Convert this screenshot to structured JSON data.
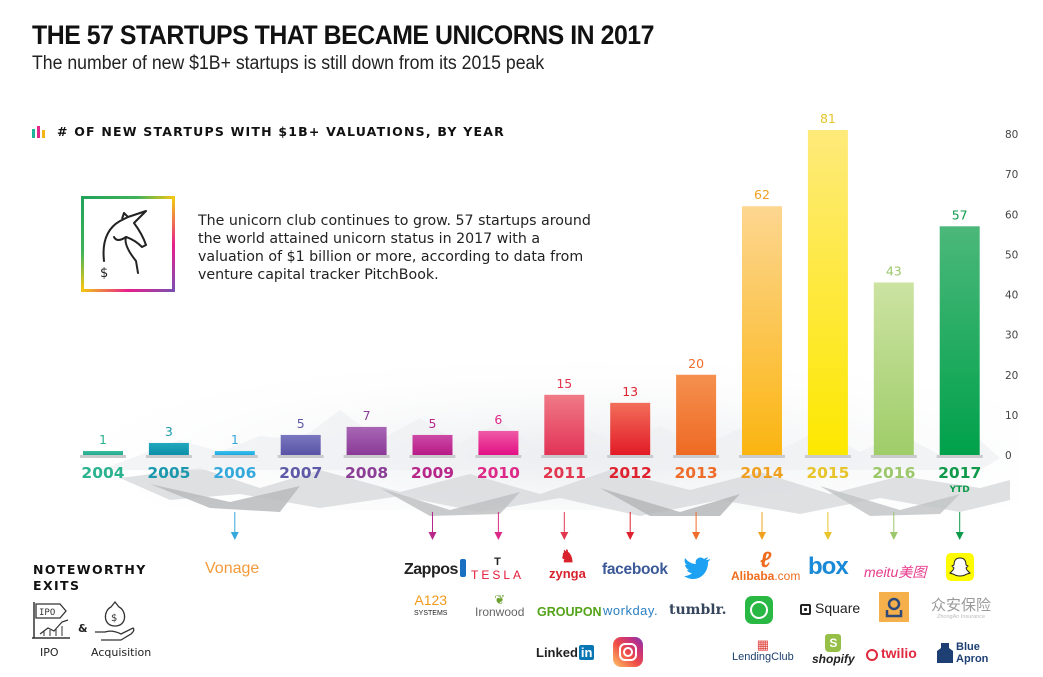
{
  "header": {
    "title": "THE 57 STARTUPS THAT BECAME UNICORNS IN 2017",
    "subtitle": "The number of new $1B+ startups is still down from its 2015 peak"
  },
  "chart_header": {
    "icon": "bar-chart-icon",
    "label": "# OF NEW STARTUPS WITH $1B+ VALUATIONS, BY YEAR"
  },
  "callout": {
    "icon": "unicorn-dollar-icon",
    "text": "The unicorn club continues to grow. 57 startups around the world attained unicorn status in 2017 with a valuation of $1 billion or more, according to data from venture capital tracker PitchBook."
  },
  "chart_data": {
    "type": "bar",
    "title": "# OF NEW STARTUPS WITH $1B+ VALUATIONS, BY YEAR",
    "xlabel": "",
    "ylabel": "",
    "categories": [
      "2004",
      "2005",
      "2006",
      "2007",
      "2008",
      "2009",
      "2010",
      "2011",
      "2012",
      "2013",
      "2014",
      "2015",
      "2016",
      "2017"
    ],
    "category_sublabels": {
      "2017": "YTD"
    },
    "values": [
      1,
      3,
      1,
      5,
      7,
      5,
      6,
      15,
      13,
      20,
      62,
      81,
      43,
      57
    ],
    "ylim": [
      0,
      80
    ],
    "yticks": [
      0,
      10,
      20,
      30,
      40,
      50,
      60,
      70,
      80
    ],
    "y_axis_position": "right",
    "grid": false,
    "legend": "none",
    "bar_colors": [
      [
        "#3dbf9f",
        "#22a88a"
      ],
      [
        "#22a7bd",
        "#0c8fa8"
      ],
      [
        "#3fc0ea",
        "#19a8e0"
      ],
      [
        "#7a78c0",
        "#5a53a6"
      ],
      [
        "#a866b5",
        "#8a3a96"
      ],
      [
        "#cc4aa6",
        "#b71a86"
      ],
      [
        "#ef5aa6",
        "#e30f85"
      ],
      [
        "#f07a86",
        "#e23357"
      ],
      [
        "#f26e5a",
        "#e21b27"
      ],
      [
        "#f5904f",
        "#ee6a23"
      ],
      [
        "#fdd690",
        "#fbb511"
      ],
      [
        "#feea7a",
        "#fde800"
      ],
      [
        "#cce3a2",
        "#9fcd69"
      ],
      [
        "#4bb87a",
        "#00a14b"
      ]
    ],
    "label_colors": [
      "#2bb28f",
      "#1b98ad",
      "#35a9dc",
      "#5e5aa7",
      "#8b3f96",
      "#b8288b",
      "#dd2a89",
      "#e2374f",
      "#de2230",
      "#ef6d2b",
      "#f0a020",
      "#e7c42a",
      "#9cc76a",
      "#0e9a4a"
    ],
    "arrows_for": [
      "2006",
      "2009",
      "2010",
      "2011",
      "2012",
      "2013",
      "2014",
      "2015",
      "2016",
      "2017"
    ]
  },
  "exits": {
    "title_line1": "NOTEWORTHY",
    "title_line2": "EXITS",
    "ipo_label": "IPO",
    "amp": "&",
    "acq_label": "Acquisition",
    "ipo_icon": "ipo-flag-icon",
    "acq_icon": "money-bag-hand-icon"
  },
  "logos": [
    {
      "year": "2006",
      "name": "Vonage",
      "text": "Vonage",
      "color": "#f39a3b"
    },
    {
      "year": "2009",
      "name": "Zappos",
      "text": "Zappos",
      "color": "#222222"
    },
    {
      "year": "2009",
      "name": "A123 Systems",
      "text": "A123",
      "sub": "SYSTEMS",
      "color": "#222222"
    },
    {
      "year": "2010",
      "name": "Tesla",
      "text": "TESLA",
      "color": "#e31937"
    },
    {
      "year": "2010",
      "name": "Ironwood",
      "text": "Ironwood",
      "color": "#666666"
    },
    {
      "year": "2011",
      "name": "Zynga",
      "text": "zynga",
      "color": "#d8222c"
    },
    {
      "year": "2011",
      "name": "Groupon",
      "text": "GROUPON",
      "color": "#53a318"
    },
    {
      "year": "2011",
      "name": "LinkedIn",
      "text": "Linked",
      "badge": "in",
      "color": "#222222"
    },
    {
      "year": "2012",
      "name": "Facebook",
      "text": "facebook",
      "color": "#3b5998"
    },
    {
      "year": "2012",
      "name": "Workday",
      "text": "workday.",
      "color": "#2a7fc1"
    },
    {
      "year": "2012",
      "name": "Instagram",
      "text": "",
      "color": "#c13584"
    },
    {
      "year": "2013",
      "name": "Twitter",
      "text": "",
      "color": "#1da1f2"
    },
    {
      "year": "2013",
      "name": "Tumblr",
      "text": "tumblr.",
      "color": "#35465c"
    },
    {
      "year": "2014",
      "name": "Alibaba",
      "text": "Alibaba",
      "suffix": ".com",
      "color": "#ef6c1e"
    },
    {
      "year": "2014",
      "name": "WhatsApp",
      "text": "",
      "color": "#25c04b"
    },
    {
      "year": "2014",
      "name": "LendingClub",
      "text": "LendingClub",
      "color": "#1c3f6e"
    },
    {
      "year": "2015",
      "name": "Box",
      "text": "box",
      "color": "#1a8ad6"
    },
    {
      "year": "2015",
      "name": "Square",
      "text": "Square",
      "color": "#222222"
    },
    {
      "year": "2015",
      "name": "Shopify",
      "text": "shopify",
      "color": "#222222"
    },
    {
      "year": "2016",
      "name": "Meitu",
      "text": "meitu美图",
      "color": "#e73a8c"
    },
    {
      "year": "2016",
      "name": "Ele.me / location app",
      "text": "",
      "color": "#f6b04b"
    },
    {
      "year": "2016",
      "name": "Twilio",
      "text": "twilio",
      "color": "#e0283f"
    },
    {
      "year": "2017",
      "name": "Snap",
      "text": "",
      "color": "#fffc00"
    },
    {
      "year": "2017",
      "name": "ZhongAn Insurance",
      "text": "众安保险",
      "sub": "ZhongAn Insurance",
      "color": "#999999"
    },
    {
      "year": "2017",
      "name": "Blue Apron",
      "text": "Blue",
      "text2": "Apron",
      "color": "#1d3f73"
    }
  ]
}
